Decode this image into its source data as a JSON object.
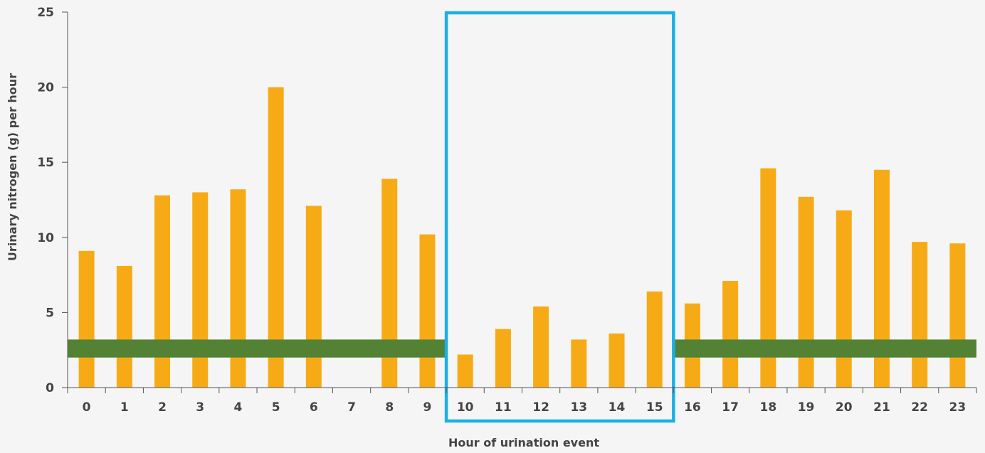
{
  "chart_data": {
    "type": "bar",
    "xlabel": "Hour of urination event",
    "ylabel": "Urinary nitrogen (g) per hour",
    "ylim": [
      0,
      25
    ],
    "yticks": [
      "0",
      "5",
      "10",
      "15",
      "20",
      "25"
    ],
    "categories": [
      "0",
      "1",
      "2",
      "3",
      "4",
      "5",
      "6",
      "7",
      "8",
      "9",
      "10",
      "11",
      "12",
      "13",
      "14",
      "15",
      "16",
      "17",
      "18",
      "19",
      "20",
      "21",
      "22",
      "23"
    ],
    "values": [
      9.1,
      8.1,
      12.8,
      13.0,
      13.2,
      20.0,
      12.1,
      0,
      13.9,
      10.2,
      2.2,
      3.9,
      5.4,
      3.2,
      3.6,
      6.4,
      5.6,
      7.1,
      14.6,
      12.7,
      11.8,
      14.5,
      9.7,
      9.6
    ],
    "grid": false,
    "highlight_region": {
      "from_category": "10",
      "to_category": "15",
      "color": "#1ab0e6"
    },
    "reference_bands": [
      {
        "from_category": "0",
        "to_category": "9",
        "y_low": 2.0,
        "y_high": 3.2,
        "color": "#548235"
      },
      {
        "from_category": "16",
        "to_category": "23",
        "y_low": 2.0,
        "y_high": 3.2,
        "color": "#548235"
      }
    ],
    "colors": {
      "bar": "#f6ab16",
      "axis": "#555555",
      "background": "#f5f5f5"
    }
  }
}
